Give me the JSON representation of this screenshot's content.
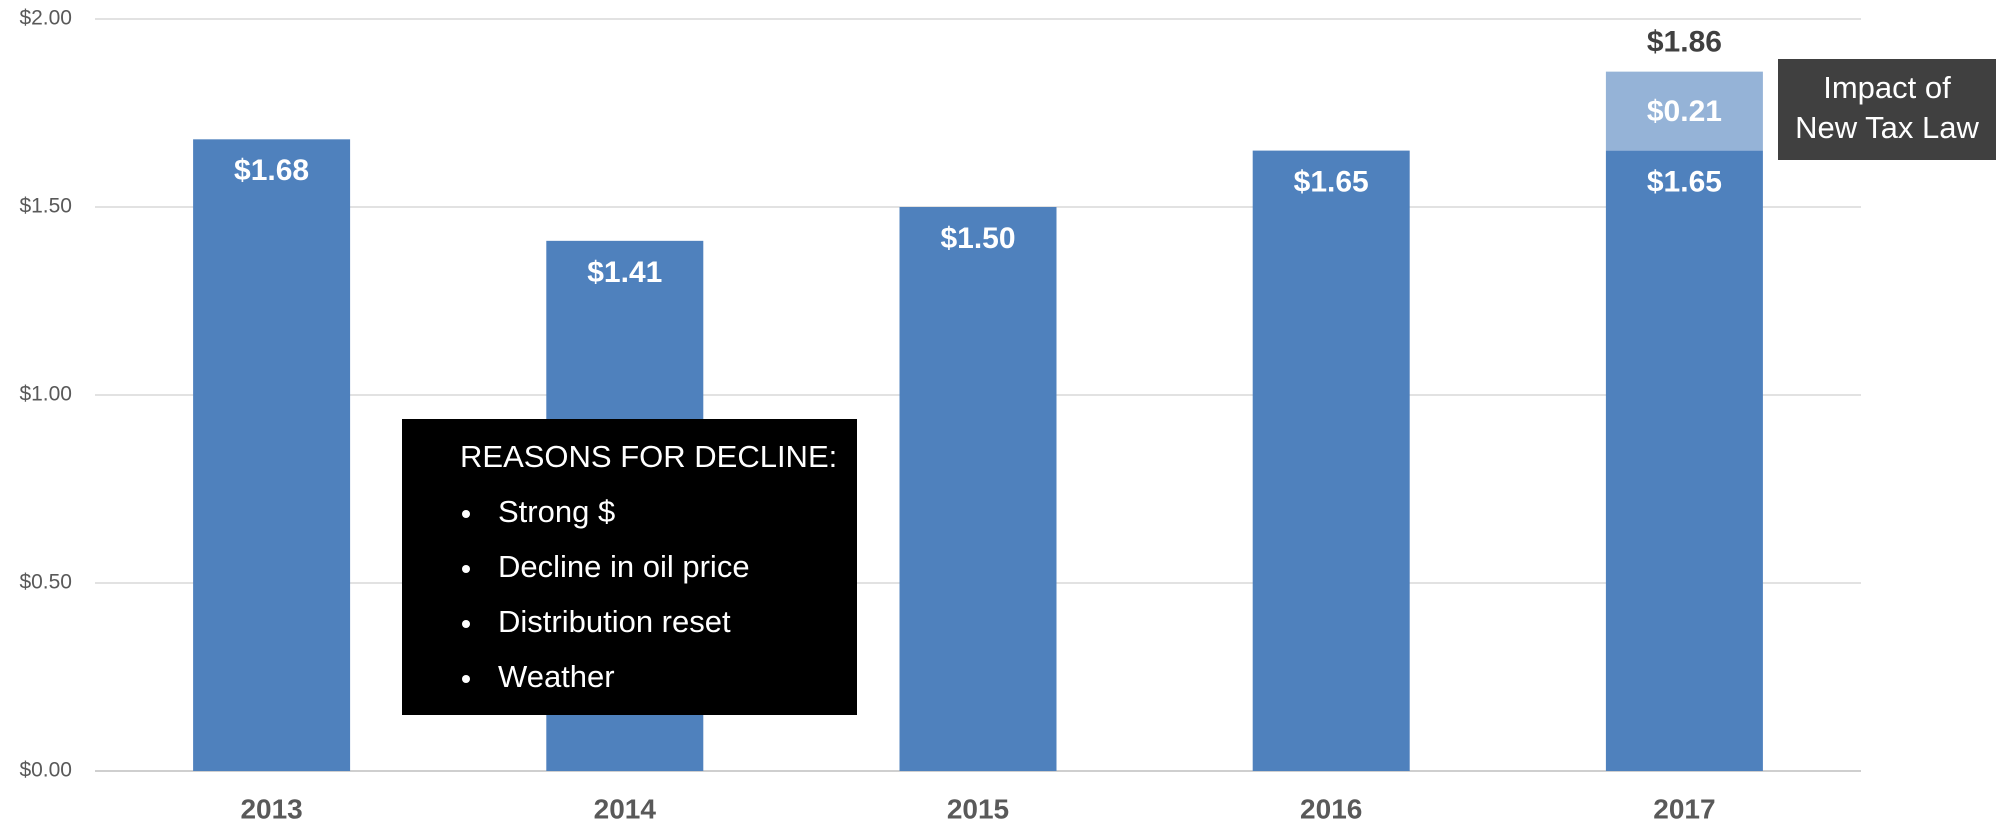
{
  "chart_data": {
    "type": "stacked_bar",
    "categories": [
      "2013",
      "2014",
      "2015",
      "2016",
      "2017"
    ],
    "series": [
      {
        "color": "#4f81bd",
        "values": [
          1.68,
          1.41,
          1.5,
          1.65,
          1.65
        ],
        "value_labels": [
          "$1.68",
          "$1.41",
          "$1.50",
          "$1.65",
          "$1.65"
        ]
      },
      {
        "color": "#95b3d7",
        "values": [
          null,
          null,
          null,
          null,
          0.21
        ],
        "value_labels": [
          null,
          null,
          null,
          null,
          "$0.21"
        ]
      }
    ],
    "ylim": [
      0,
      2
    ],
    "yticks": [
      {
        "value": 0,
        "label": "$0.00"
      },
      {
        "value": 0.5,
        "label": "$0.50"
      },
      {
        "value": 1,
        "label": "$1.00"
      },
      {
        "value": 1.5,
        "label": "$1.50"
      },
      {
        "value": 2,
        "label": "$2.00"
      }
    ],
    "grid": true,
    "total_label": {
      "category": 4,
      "text": "$1.86"
    },
    "legend_box": {
      "lines": [
        "Impact of",
        "New Tax Law"
      ]
    },
    "note_box": {
      "title": "REASONS FOR DECLINE:",
      "items": [
        "Strong $",
        "Decline in oil price",
        "Distribution reset",
        "Weather"
      ]
    }
  }
}
